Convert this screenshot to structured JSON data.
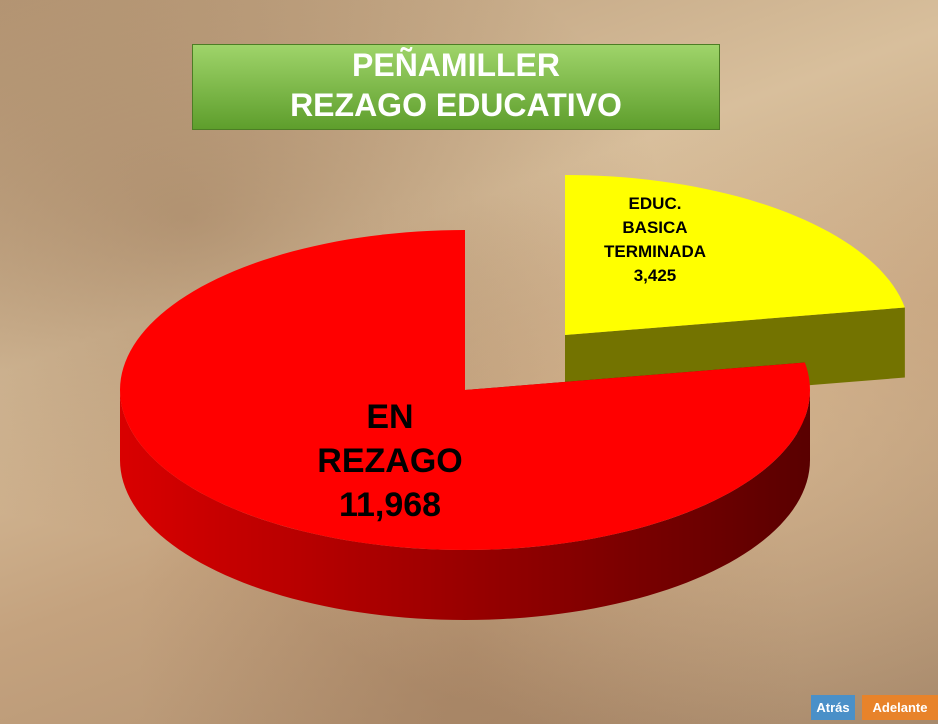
{
  "chart_data": {
    "type": "pie",
    "title": "PEÑAMILLER",
    "subtitle": "REZAGO EDUCATIVO",
    "categories": [
      "EN REZAGO",
      "EDUC. BASICA TERMINADA"
    ],
    "values": [
      11968,
      3425
    ],
    "value_labels": [
      "11,968",
      "3,425"
    ],
    "colors": [
      "#ff0000",
      "#ffff00"
    ]
  },
  "navigation": {
    "back": "Atrás",
    "forward": "Adelante"
  }
}
